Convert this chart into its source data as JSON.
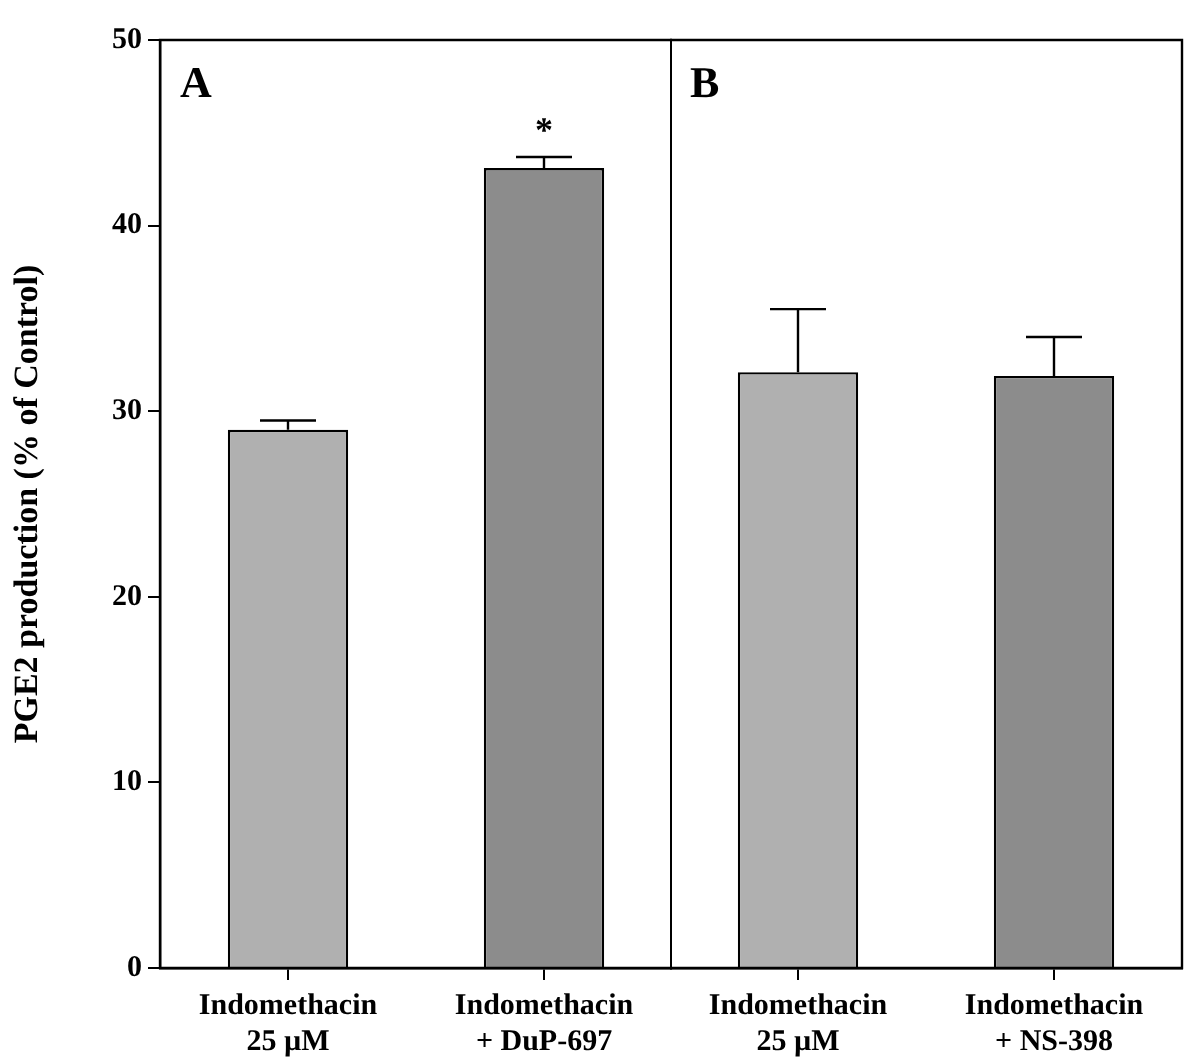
{
  "chart_data": [
    {
      "type": "bar",
      "title": "A",
      "ylabel": "PGE2 production (% of Control)",
      "categories": [
        "Indomethacin\n25 µM",
        "Indomethacin\n+ DuP-697"
      ],
      "values": [
        29.0,
        43.1
      ],
      "errors": [
        [
          29.0,
          29.5
        ],
        [
          43.1,
          43.7
        ]
      ],
      "colors": [
        "#b0b0b0",
        "#8c8c8c"
      ],
      "ylim": [
        0,
        50
      ],
      "yticks": [
        0,
        10,
        20,
        30,
        40,
        50
      ],
      "grid": false,
      "annotations": [
        "*"
      ]
    },
    {
      "type": "bar",
      "title": "B",
      "categories": [
        "Indomethacin\n25 µM",
        "Indomethacin\n+ NS-398"
      ],
      "values": [
        32.1,
        31.9
      ],
      "errors": [
        [
          32.1,
          35.5
        ],
        [
          31.9,
          34.0
        ]
      ],
      "colors": [
        "#b0b0b0",
        "#8c8c8c"
      ],
      "ylim": [
        0,
        50
      ],
      "grid": false,
      "tick_labels": "x"
    }
  ]
}
